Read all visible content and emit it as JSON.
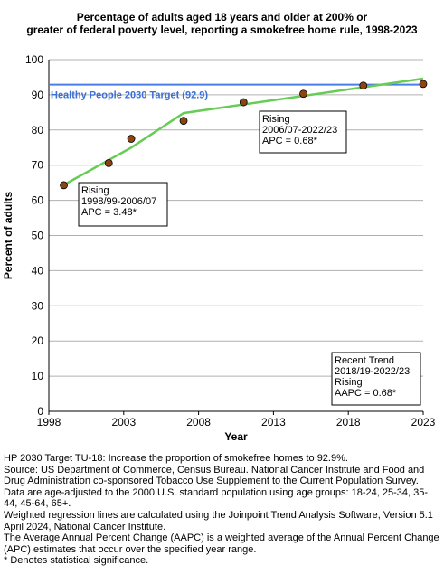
{
  "title_lines": [
    "Percentage of adults aged 18 years and older at 200% or",
    "greater of federal poverty level, reporting a smokefree home rule, 1998-2023"
  ],
  "chart_data": {
    "type": "scatter",
    "title": "Percentage of adults aged 18 years and older at 200% or greater of federal poverty level, reporting a smokefree home rule, 1998-2023",
    "xlabel": "Year",
    "ylabel": "Percent of adults",
    "xlim": [
      1998,
      2023
    ],
    "ylim": [
      0,
      100
    ],
    "x_ticks": [
      "1998",
      "2003",
      "2008",
      "2013",
      "2018",
      "2023"
    ],
    "y_ticks": [
      "0",
      "10",
      "20",
      "30",
      "40",
      "50",
      "60",
      "70",
      "80",
      "90",
      "100"
    ],
    "grid": "horizontal",
    "points": [
      {
        "x": 1999,
        "y": 64.3
      },
      {
        "x": 2002,
        "y": 70.6
      },
      {
        "x": 2003.5,
        "y": 77.5
      },
      {
        "x": 2007,
        "y": 82.6
      },
      {
        "x": 2011,
        "y": 87.9
      },
      {
        "x": 2015,
        "y": 90.3
      },
      {
        "x": 2019,
        "y": 92.6
      },
      {
        "x": 2023,
        "y": 93.1
      }
    ],
    "trend_line": [
      {
        "x": 1999,
        "y": 64.4
      },
      {
        "x": 2003.5,
        "y": 75.0
      },
      {
        "x": 2007,
        "y": 84.8
      },
      {
        "x": 2023,
        "y": 94.6
      }
    ],
    "target": {
      "label": "Healthy People 2030 Target (92.9)",
      "value": 92.9
    },
    "annotations": [
      {
        "lines": [
          "Rising",
          "1998/99-2006/07",
          "APC =  3.48*"
        ]
      },
      {
        "lines": [
          "Rising",
          "2006/07-2022/23",
          "APC =  0.68*"
        ]
      },
      {
        "lines": [
          "Recent Trend",
          "2018/19-2022/23",
          "Rising",
          "AAPC =  0.68*"
        ]
      }
    ],
    "colors": {
      "marker_fill": "#8b4513",
      "trend_line": "#66cc55",
      "target_line": "#4a7ee8",
      "target_text": "#3a6fd8",
      "grid": "#b0b0b0"
    }
  },
  "footnotes": [
    "HP 2030 Target TU-18: Increase the proportion of smokefree homes to 92.9%.",
    "Source: US Department of Commerce, Census Bureau. National Cancer Institute and Food and Drug Administration co-sponsored Tobacco Use Supplement to the Current Population Survey.",
    "Data are age-adjusted to the 2000 U.S. standard population using age groups: 18-24, 25-34, 35-44, 45-64, 65+.",
    "Weighted regression lines are calculated using the Joinpoint Trend Analysis Software, Version 5.1 April 2024, National Cancer Institute.",
    "The Average Annual Percent Change (AAPC) is a weighted average of the Annual Percent Change (APC) estimates that occur over the specified year range.",
    "* Denotes statistical significance."
  ]
}
